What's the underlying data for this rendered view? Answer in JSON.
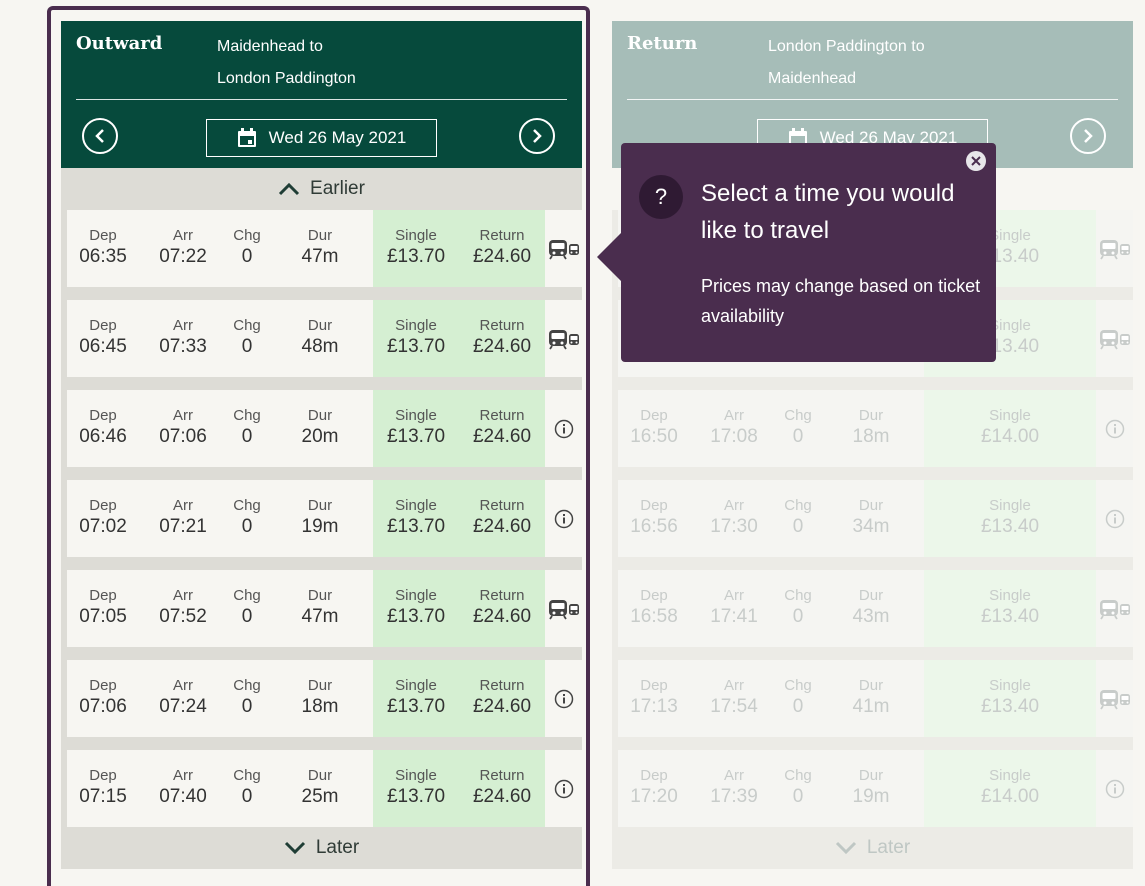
{
  "outward": {
    "title": "Outward",
    "route_from": "Maidenhead to",
    "route_to": "London Paddington",
    "date": "Wed 26 May 2021",
    "earlier": "Earlier",
    "later": "Later",
    "labels": {
      "dep": "Dep",
      "arr": "Arr",
      "chg": "Chg",
      "dur": "Dur",
      "single": "Single",
      "return": "Return"
    },
    "journeys": [
      {
        "dep": "06:35",
        "arr": "07:22",
        "chg": "0",
        "dur": "47m",
        "single": "£13.70",
        "return": "£24.60",
        "icon": "train-bus-icon"
      },
      {
        "dep": "06:45",
        "arr": "07:33",
        "chg": "0",
        "dur": "48m",
        "single": "£13.70",
        "return": "£24.60",
        "icon": "train-bus-icon"
      },
      {
        "dep": "06:46",
        "arr": "07:06",
        "chg": "0",
        "dur": "20m",
        "single": "£13.70",
        "return": "£24.60",
        "icon": "info-icon"
      },
      {
        "dep": "07:02",
        "arr": "07:21",
        "chg": "0",
        "dur": "19m",
        "single": "£13.70",
        "return": "£24.60",
        "icon": "info-icon"
      },
      {
        "dep": "07:05",
        "arr": "07:52",
        "chg": "0",
        "dur": "47m",
        "single": "£13.70",
        "return": "£24.60",
        "icon": "train-bus-icon"
      },
      {
        "dep": "07:06",
        "arr": "07:24",
        "chg": "0",
        "dur": "18m",
        "single": "£13.70",
        "return": "£24.60",
        "icon": "info-icon"
      },
      {
        "dep": "07:15",
        "arr": "07:40",
        "chg": "0",
        "dur": "25m",
        "single": "£13.70",
        "return": "£24.60",
        "icon": "info-icon"
      }
    ]
  },
  "return": {
    "title": "Return",
    "route_from": "London Paddington to",
    "route_to": "Maidenhead",
    "date": "Wed 26 May 2021",
    "later": "Later",
    "labels": {
      "dep": "Dep",
      "arr": "Arr",
      "chg": "Chg",
      "dur": "Dur",
      "single": "Single"
    },
    "journeys": [
      {
        "dep": "",
        "arr": "",
        "chg": "",
        "dur": "",
        "single": "£13.40",
        "icon": "train-bus-icon"
      },
      {
        "dep": "",
        "arr": "",
        "chg": "",
        "dur": "",
        "single": "£13.40",
        "icon": "train-bus-icon"
      },
      {
        "dep": "16:50",
        "arr": "17:08",
        "chg": "0",
        "dur": "18m",
        "single": "£14.00",
        "icon": "info-icon"
      },
      {
        "dep": "16:56",
        "arr": "17:30",
        "chg": "0",
        "dur": "34m",
        "single": "£13.40",
        "icon": "info-icon"
      },
      {
        "dep": "16:58",
        "arr": "17:41",
        "chg": "0",
        "dur": "43m",
        "single": "£13.40",
        "icon": "train-bus-icon"
      },
      {
        "dep": "17:13",
        "arr": "17:54",
        "chg": "0",
        "dur": "41m",
        "single": "£13.40",
        "icon": "train-bus-icon"
      },
      {
        "dep": "17:20",
        "arr": "17:39",
        "chg": "0",
        "dur": "19m",
        "single": "£14.00",
        "icon": "info-icon"
      }
    ]
  },
  "tooltip": {
    "question_mark": "?",
    "title": "Select a time you would like to travel",
    "body": "Prices may change based on ticket availability"
  },
  "colors": {
    "outward_header": "#064a3c",
    "return_header": "#a6bdb8",
    "tooltip_bg": "#4a2d4e",
    "price_bg": "#d5efd2"
  }
}
